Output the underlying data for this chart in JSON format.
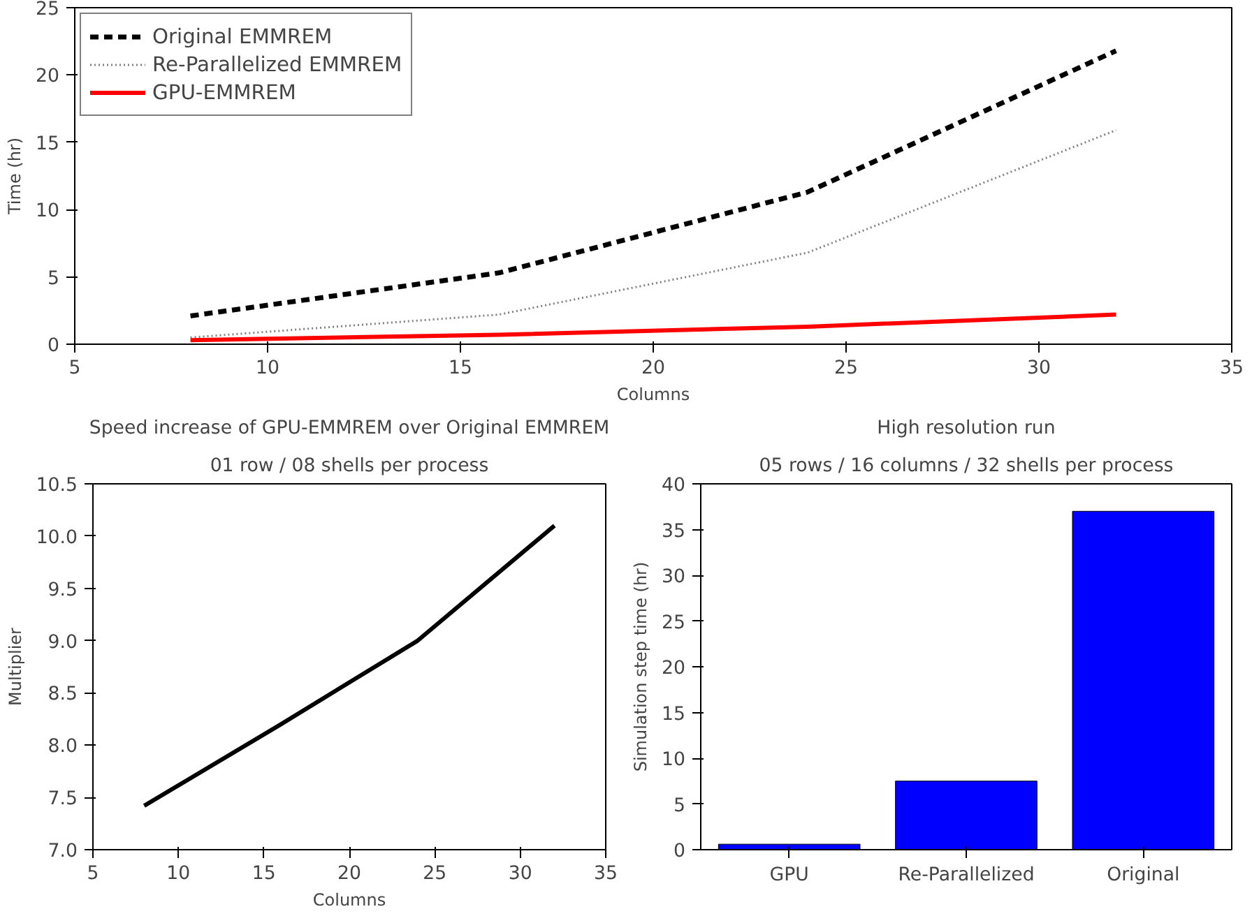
{
  "chart_data": [
    {
      "type": "line",
      "xlabel": "Columns",
      "ylabel": "Time (hr)",
      "x": [
        8,
        16,
        24,
        32
      ],
      "xlim": [
        5,
        35
      ],
      "xticks": [
        5,
        10,
        15,
        20,
        25,
        30,
        35
      ],
      "ylim": [
        0,
        25
      ],
      "yticks": [
        0,
        5,
        10,
        15,
        20,
        25
      ],
      "grid": false,
      "legend": "top left",
      "series": [
        {
          "name": "Original EMMREM",
          "color": "#000000",
          "line_style": "dashed",
          "values": [
            2.1,
            5.3,
            11.3,
            21.8
          ]
        },
        {
          "name": "Re-Parallelized EMMREM",
          "color": "#808080",
          "line_style": "dotted",
          "values": [
            0.5,
            2.2,
            6.8,
            15.9
          ]
        },
        {
          "name": "GPU-EMMREM",
          "color": "#ff0000",
          "line_style": "solid",
          "values": [
            0.3,
            0.7,
            1.3,
            2.2
          ]
        }
      ]
    },
    {
      "type": "line",
      "title": "Speed increase of GPU-EMMREM over Original EMMREM",
      "subtitle": "01 row / 08 shells per process",
      "xlabel": "Columns",
      "ylabel": "Multiplier",
      "x": [
        8,
        16,
        24,
        32
      ],
      "xlim": [
        5,
        35
      ],
      "xticks": [
        5,
        10,
        15,
        20,
        25,
        30,
        35
      ],
      "ylim": [
        7.0,
        10.5
      ],
      "yticks": [
        {
          "value": 7.0,
          "label": "7.0"
        },
        7.5,
        {
          "value": 8.0,
          "label": "8.0"
        },
        8.5,
        {
          "value": 9.0,
          "label": "9.0"
        },
        9.5,
        {
          "value": 10.0,
          "label": "10.0"
        },
        10.5
      ],
      "grid": false,
      "series": [
        {
          "color": "#000000",
          "line_style": "solid",
          "values": [
            7.42,
            8.2,
            9.0,
            10.1
          ]
        }
      ]
    },
    {
      "type": "bar",
      "title": "High resolution run",
      "subtitle": "05 rows / 16 columns / 32 shells per process",
      "ylabel": "Simulation step time (hr)",
      "categories": [
        "GPU",
        "Re-Parallelized",
        "Original"
      ],
      "ylim": [
        0,
        40
      ],
      "yticks": [
        0,
        5,
        10,
        15,
        20,
        25,
        30,
        35,
        40
      ],
      "grid": false,
      "series": [
        {
          "color": "#0000ff",
          "values": [
            0.6,
            7.5,
            37
          ]
        }
      ]
    }
  ]
}
